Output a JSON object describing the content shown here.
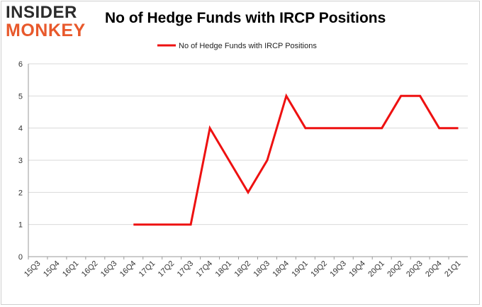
{
  "brand": {
    "line1": "INSIDER",
    "line2": "MONKEY"
  },
  "chart_data": {
    "type": "line",
    "title": "No of Hedge Funds with IRCP Positions",
    "xlabel": "",
    "ylabel": "",
    "ylim": [
      0,
      6
    ],
    "yticks": [
      0,
      1,
      2,
      3,
      4,
      5,
      6
    ],
    "grid": true,
    "legend_position": "top-center",
    "categories": [
      "15Q3",
      "15Q4",
      "16Q1",
      "16Q2",
      "16Q3",
      "16Q4",
      "17Q1",
      "17Q2",
      "17Q3",
      "17Q4",
      "18Q1",
      "18Q2",
      "18Q3",
      "18Q4",
      "19Q1",
      "19Q2",
      "19Q3",
      "19Q4",
      "20Q1",
      "20Q2",
      "20Q3",
      "20Q4",
      "21Q1"
    ],
    "series": [
      {
        "name": "No of Hedge Funds with IRCP Positions",
        "color": "#ee1111",
        "values": [
          null,
          null,
          null,
          null,
          null,
          1,
          1,
          1,
          1,
          4,
          3,
          2,
          3,
          5,
          4,
          4,
          4,
          4,
          4,
          5,
          5,
          4,
          4
        ]
      }
    ]
  }
}
